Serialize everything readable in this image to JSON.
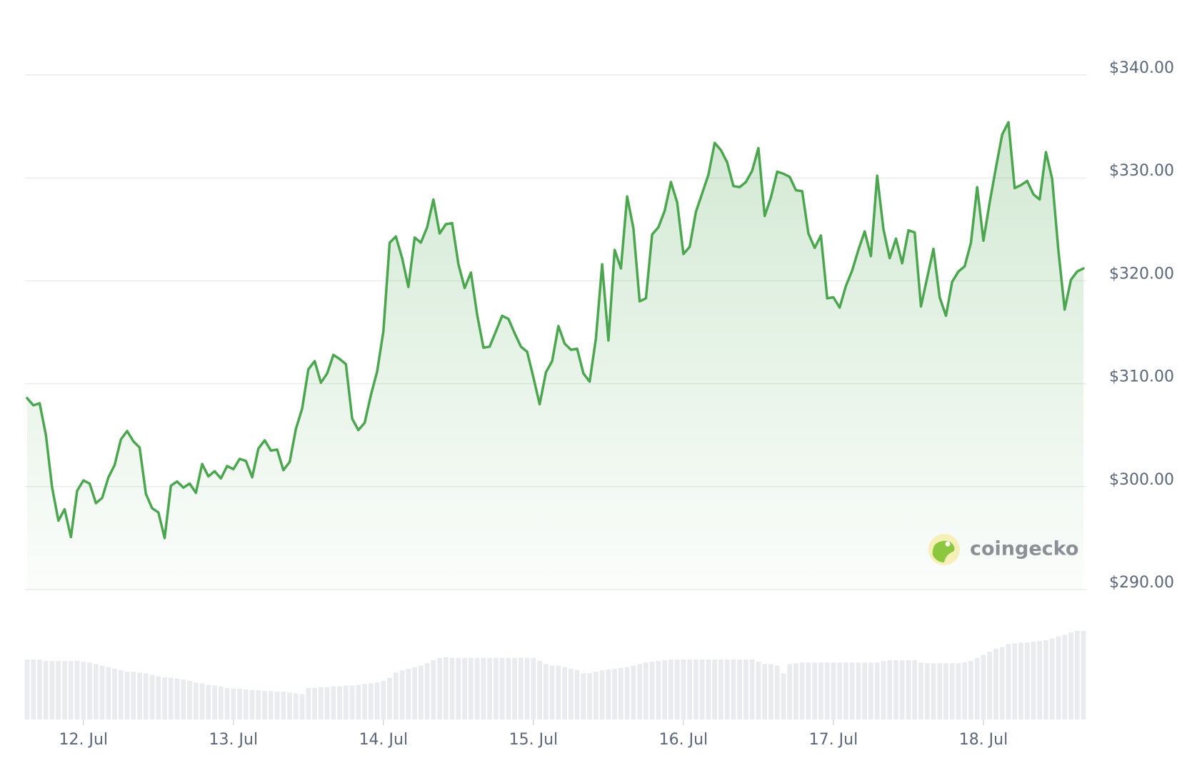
{
  "chart_data": {
    "type": "line",
    "categories": [
      null,
      null,
      null,
      null,
      null,
      null,
      null,
      null,
      null,
      "12. Jul",
      null,
      null,
      null,
      null,
      null,
      null,
      null,
      null,
      null,
      null,
      null,
      null,
      null,
      null,
      null,
      null,
      null,
      null,
      null,
      null,
      null,
      null,
      null,
      "13. Jul",
      null,
      null,
      null,
      null,
      null,
      null,
      null,
      null,
      null,
      null,
      null,
      null,
      null,
      null,
      null,
      null,
      null,
      null,
      null,
      null,
      null,
      null,
      null,
      "14. Jul",
      null,
      null,
      null,
      null,
      null,
      null,
      null,
      null,
      null,
      null,
      null,
      null,
      null,
      null,
      null,
      null,
      null,
      null,
      null,
      null,
      null,
      null,
      null,
      "15. Jul",
      null,
      null,
      null,
      null,
      null,
      null,
      null,
      null,
      null,
      null,
      null,
      null,
      null,
      null,
      null,
      null,
      null,
      null,
      null,
      null,
      null,
      null,
      null,
      "16. Jul",
      null,
      null,
      null,
      null,
      null,
      null,
      null,
      null,
      null,
      null,
      null,
      null,
      null,
      null,
      null,
      null,
      null,
      null,
      null,
      null,
      null,
      null,
      null,
      "17. Jul",
      null,
      null,
      null,
      null,
      null,
      null,
      null,
      null,
      null,
      null,
      null,
      null,
      null,
      null,
      null,
      null,
      null,
      null,
      null,
      null,
      null,
      null,
      null,
      "18. Jul",
      null,
      null,
      null,
      null,
      null,
      null,
      null,
      null,
      null,
      null,
      null,
      null,
      null,
      null,
      null,
      null
    ],
    "values": [
      308.6,
      307.9,
      308.1,
      305.0,
      299.9,
      296.7,
      297.8,
      295.1,
      299.6,
      300.6,
      300.3,
      298.4,
      298.9,
      300.9,
      302.1,
      304.6,
      305.4,
      304.4,
      303.8,
      299.3,
      297.9,
      297.5,
      295.0,
      300.1,
      300.5,
      299.9,
      300.3,
      299.4,
      302.2,
      301.0,
      301.5,
      300.8,
      302.0,
      301.7,
      302.7,
      302.5,
      300.9,
      303.7,
      304.5,
      303.5,
      303.6,
      301.6,
      302.4,
      305.6,
      307.6,
      311.4,
      312.2,
      310.1,
      311.0,
      312.8,
      312.4,
      311.9,
      306.6,
      305.5,
      306.2,
      308.9,
      311.2,
      315.1,
      323.7,
      324.3,
      322.2,
      319.4,
      324.2,
      323.7,
      325.2,
      327.9,
      324.6,
      325.5,
      325.6,
      321.6,
      319.3,
      320.8,
      316.7,
      313.5,
      313.6,
      315.1,
      316.6,
      316.3,
      314.9,
      313.6,
      313.1,
      310.6,
      308.0,
      311.1,
      312.2,
      315.6,
      313.9,
      313.3,
      313.4,
      311.0,
      310.2,
      314.4,
      321.6,
      314.2,
      323.0,
      321.2,
      328.2,
      325.1,
      318.0,
      318.3,
      324.5,
      325.2,
      326.8,
      329.6,
      327.6,
      322.6,
      323.3,
      326.7,
      328.5,
      330.3,
      333.4,
      332.7,
      331.5,
      329.2,
      329.1,
      329.6,
      330.7,
      332.9,
      326.3,
      328.1,
      330.6,
      330.4,
      330.1,
      328.8,
      328.7,
      324.6,
      323.2,
      324.4,
      318.3,
      318.4,
      317.4,
      319.5,
      321.0,
      323.0,
      324.8,
      322.4,
      330.2,
      325.0,
      322.2,
      324.1,
      321.7,
      324.9,
      324.7,
      317.5,
      320.3,
      323.1,
      318.4,
      316.6,
      319.9,
      320.9,
      321.4,
      323.7,
      329.1,
      323.9,
      327.6,
      331.0,
      334.2,
      335.4,
      329.0,
      329.3,
      329.7,
      328.4,
      327.9,
      332.5,
      329.9,
      322.9,
      317.2,
      320.1,
      320.9,
      321.2
    ],
    "color": "#4ba64f",
    "ylim": [
      290,
      340
    ],
    "yticks": [
      {
        "value": 290,
        "label": "$290.00"
      },
      {
        "value": 300,
        "label": "$300.00"
      },
      {
        "value": 310,
        "label": "$310.00"
      },
      {
        "value": 320,
        "label": "$320.00"
      },
      {
        "value": 330,
        "label": "$330.00"
      },
      {
        "value": 340,
        "label": "$340.00"
      }
    ],
    "grid": true,
    "volume": {
      "color": "#e9ebee",
      "lim": [
        0,
        115
      ],
      "values": [
        78,
        78,
        78,
        76,
        76,
        76,
        76,
        76,
        76,
        75,
        74,
        72,
        70,
        68,
        66,
        64,
        62,
        62,
        61,
        60,
        58,
        56,
        55,
        54,
        53,
        52,
        50,
        48,
        47,
        45,
        44,
        43,
        41,
        40,
        40,
        39,
        38,
        38,
        37,
        37,
        36,
        36,
        35,
        34,
        33,
        41,
        41,
        42,
        42,
        43,
        43,
        44,
        44,
        45,
        46,
        47,
        48,
        50,
        54,
        61,
        64,
        66,
        68,
        70,
        73,
        77,
        80,
        81,
        80,
        80,
        80,
        80,
        80,
        80,
        80,
        80,
        80,
        80,
        80,
        80,
        80,
        80,
        76,
        72,
        70,
        70,
        68,
        66,
        64,
        60,
        60,
        62,
        64,
        65,
        66,
        67,
        68,
        70,
        72,
        74,
        75,
        76,
        77,
        78,
        78,
        78,
        78,
        78,
        78,
        78,
        78,
        78,
        78,
        78,
        78,
        78,
        78,
        75,
        72,
        72,
        70,
        60,
        72,
        73,
        74,
        74,
        74,
        74,
        74,
        74,
        74,
        74,
        74,
        74,
        74,
        74,
        74,
        76,
        77,
        77,
        77,
        77,
        77,
        74,
        73,
        73,
        73,
        73,
        73,
        73,
        74,
        76,
        80,
        84,
        88,
        92,
        94,
        98,
        99,
        100,
        100,
        101,
        102,
        103,
        105,
        108,
        110,
        113,
        115,
        115
      ]
    },
    "watermark": "coingecko"
  }
}
